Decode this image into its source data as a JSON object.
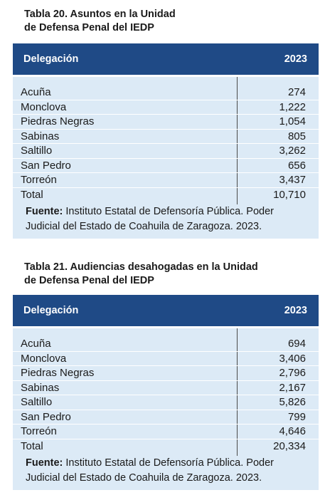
{
  "tables": [
    {
      "title_line1": "Tabla 20. Asuntos en la Unidad",
      "title_line2": "de Defensa Penal del IEDP",
      "col_label": "Delegación",
      "col_year": "2023",
      "rows": [
        {
          "name": "Acuña",
          "value": "274"
        },
        {
          "name": "Monclova",
          "value": "1,222"
        },
        {
          "name": "Piedras Negras",
          "value": "1,054"
        },
        {
          "name": "Sabinas",
          "value": "805"
        },
        {
          "name": "Saltillo",
          "value": "3,262"
        },
        {
          "name": "San Pedro",
          "value": "656"
        },
        {
          "name": "Torreón",
          "value": "3,437"
        },
        {
          "name": "Total",
          "value": "10,710"
        }
      ],
      "source_label": "Fuente:",
      "source_text": " Instituto Estatal de Defensoría Pública. Poder Judicial del Estado de Coahuila de Zaragoza. 2023."
    },
    {
      "title_line1": "Tabla 21. Audiencias desahogadas en la Unidad",
      "title_line2": "de Defensa Penal del IEDP",
      "col_label": "Delegación",
      "col_year": "2023",
      "rows": [
        {
          "name": "Acuña",
          "value": "694"
        },
        {
          "name": "Monclova",
          "value": "3,406"
        },
        {
          "name": "Piedras Negras",
          "value": "2,796"
        },
        {
          "name": "Sabinas",
          "value": "2,167"
        },
        {
          "name": "Saltillo",
          "value": "5,826"
        },
        {
          "name": "San Pedro",
          "value": "799"
        },
        {
          "name": "Torreón",
          "value": "4,646"
        },
        {
          "name": "Total",
          "value": "20,334"
        }
      ],
      "source_label": "Fuente:",
      "source_text": " Instituto Estatal de Defensoría Pública. Poder Judicial del Estado de Coahuila de Zaragoza. 2023."
    }
  ],
  "colors": {
    "header_bg": "#1f4a86",
    "body_bg": "#dceaf6"
  }
}
